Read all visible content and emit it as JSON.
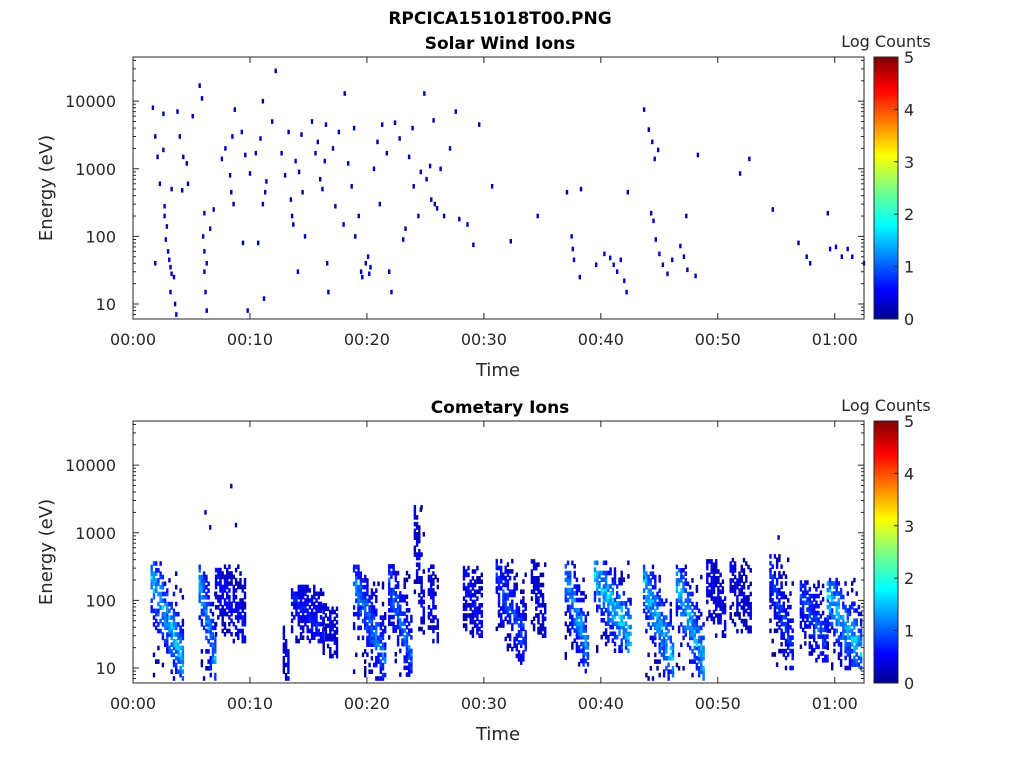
{
  "figure": {
    "title": "RPCICA151018T00.PNG"
  },
  "chart_data": [
    {
      "type": "heatmap",
      "title": "Solar Wind Ions",
      "xlabel": "Time",
      "ylabel": "Energy (eV)",
      "y_scale": "log",
      "ylim": [
        6,
        45000
      ],
      "x_range_minutes": [
        0,
        62.5
      ],
      "x_ticks": [
        "00:00",
        "00:10",
        "00:20",
        "00:30",
        "00:40",
        "00:50",
        "01:00"
      ],
      "y_ticks": [
        "10",
        "100",
        "1000",
        "10000"
      ],
      "colorbar": {
        "label": "Log Counts",
        "range": [
          0,
          5
        ],
        "ticks": [
          "0",
          "1",
          "2",
          "3",
          "4",
          "5"
        ]
      },
      "grid": false,
      "note_points": "x = minutes after 00:00, y = energy in eV, z = log counts",
      "points": [
        [
          1.6,
          8000,
          0.2
        ],
        [
          1.8,
          3000,
          0.2
        ],
        [
          2.0,
          1500,
          0.2
        ],
        [
          2.2,
          600,
          0.2
        ],
        [
          2.5,
          6500,
          0.2
        ],
        [
          2.5,
          1900,
          0.2
        ],
        [
          2.6,
          280,
          0.3
        ],
        [
          2.6,
          200,
          0.3
        ],
        [
          2.8,
          140,
          0.3
        ],
        [
          2.7,
          90,
          0.3
        ],
        [
          2.9,
          60,
          0.3
        ],
        [
          3.0,
          45,
          0.3
        ],
        [
          3.1,
          35,
          0.3
        ],
        [
          3.2,
          28,
          0.3
        ],
        [
          3.4,
          25,
          0.3
        ],
        [
          3.1,
          15,
          0.3
        ],
        [
          3.5,
          10,
          0.3
        ],
        [
          3.6,
          7,
          0.3
        ],
        [
          1.8,
          40,
          0.2
        ],
        [
          3.2,
          500,
          0.2
        ],
        [
          3.7,
          7000,
          0.2
        ],
        [
          3.9,
          3000,
          0.2
        ],
        [
          4.2,
          1500,
          0.2
        ],
        [
          4.5,
          1200,
          0.2
        ],
        [
          4.1,
          480,
          0.2
        ],
        [
          4.6,
          600,
          0.2
        ],
        [
          5.0,
          6000,
          0.2
        ],
        [
          5.6,
          17000,
          0.2
        ],
        [
          5.8,
          11000,
          0.2
        ],
        [
          6.0,
          220,
          0.3
        ],
        [
          5.9,
          100,
          0.3
        ],
        [
          6.0,
          60,
          0.3
        ],
        [
          6.2,
          40,
          0.3
        ],
        [
          6.0,
          30,
          0.3
        ],
        [
          6.1,
          15,
          0.3
        ],
        [
          6.2,
          8,
          0.3
        ],
        [
          6.5,
          130,
          0.2
        ],
        [
          6.8,
          250,
          0.2
        ],
        [
          7.5,
          1400,
          0.2
        ],
        [
          7.8,
          2000,
          0.2
        ],
        [
          8.2,
          800,
          0.2
        ],
        [
          8.4,
          3000,
          0.2
        ],
        [
          8.6,
          7500,
          0.2
        ],
        [
          8.3,
          450,
          0.2
        ],
        [
          8.5,
          300,
          0.2
        ],
        [
          9.2,
          3500,
          0.2
        ],
        [
          9.3,
          80,
          0.2
        ],
        [
          9.5,
          1600,
          0.2
        ],
        [
          9.7,
          8,
          0.2
        ],
        [
          9.9,
          850,
          0.2
        ],
        [
          10.4,
          1700,
          0.2
        ],
        [
          10.6,
          80,
          0.2
        ],
        [
          10.8,
          2800,
          0.2
        ],
        [
          11.0,
          10000,
          0.2
        ],
        [
          11.3,
          650,
          0.2
        ],
        [
          11.2,
          450,
          0.2
        ],
        [
          11.0,
          300,
          0.2
        ],
        [
          11.1,
          12,
          0.2
        ],
        [
          11.8,
          5000,
          0.2
        ],
        [
          12.1,
          28000,
          0.2
        ],
        [
          12.6,
          1700,
          0.2
        ],
        [
          12.9,
          800,
          0.2
        ],
        [
          13.2,
          3500,
          0.2
        ],
        [
          13.4,
          350,
          0.2
        ],
        [
          13.5,
          200,
          0.2
        ],
        [
          13.6,
          150,
          0.2
        ],
        [
          13.8,
          1300,
          0.2
        ],
        [
          14.1,
          900,
          0.2
        ],
        [
          14.3,
          3200,
          0.2
        ],
        [
          14.4,
          450,
          0.2
        ],
        [
          14.6,
          100,
          0.2
        ],
        [
          14.0,
          30,
          0.2
        ],
        [
          15.2,
          5000,
          0.2
        ],
        [
          15.5,
          1700,
          0.2
        ],
        [
          15.7,
          2500,
          0.2
        ],
        [
          15.9,
          700,
          0.2
        ],
        [
          16.1,
          500,
          0.2
        ],
        [
          16.3,
          1300,
          0.2
        ],
        [
          16.4,
          4500,
          0.2
        ],
        [
          16.5,
          40,
          0.2
        ],
        [
          16.6,
          15,
          0.2
        ],
        [
          17.0,
          2000,
          0.2
        ],
        [
          17.2,
          280,
          0.2
        ],
        [
          17.5,
          3500,
          0.2
        ],
        [
          17.9,
          150,
          0.2
        ],
        [
          18.0,
          13000,
          0.2
        ],
        [
          18.3,
          1200,
          0.2
        ],
        [
          18.6,
          550,
          0.2
        ],
        [
          18.8,
          4000,
          0.2
        ],
        [
          18.9,
          100,
          0.2
        ],
        [
          19.2,
          200,
          0.2
        ],
        [
          19.4,
          30,
          0.3
        ],
        [
          19.5,
          25,
          0.3
        ],
        [
          19.8,
          40,
          0.3
        ],
        [
          20.0,
          50,
          0.3
        ],
        [
          20.2,
          35,
          0.3
        ],
        [
          20.1,
          28,
          0.3
        ],
        [
          20.5,
          1000,
          0.2
        ],
        [
          20.8,
          2500,
          0.2
        ],
        [
          21.0,
          300,
          0.2
        ],
        [
          21.2,
          4500,
          0.2
        ],
        [
          21.6,
          1700,
          0.2
        ],
        [
          21.8,
          30,
          0.2
        ],
        [
          22.0,
          15,
          0.2
        ],
        [
          22.3,
          4800,
          0.2
        ],
        [
          22.7,
          2800,
          0.2
        ],
        [
          23.0,
          90,
          0.2
        ],
        [
          23.2,
          130,
          0.2
        ],
        [
          23.5,
          1500,
          0.2
        ],
        [
          23.8,
          4000,
          0.2
        ],
        [
          23.9,
          550,
          0.2
        ],
        [
          24.3,
          200,
          0.2
        ],
        [
          24.5,
          900,
          0.2
        ],
        [
          24.8,
          13000,
          0.2
        ],
        [
          25.0,
          700,
          0.2
        ],
        [
          25.3,
          1100,
          0.2
        ],
        [
          25.6,
          5200,
          0.2
        ],
        [
          25.4,
          350,
          0.2
        ],
        [
          25.7,
          300,
          0.2
        ],
        [
          25.9,
          260,
          0.2
        ],
        [
          26.2,
          1000,
          0.2
        ],
        [
          26.5,
          200,
          0.2
        ],
        [
          27.0,
          2000,
          0.2
        ],
        [
          27.5,
          7000,
          0.2
        ],
        [
          27.8,
          180,
          0.2
        ],
        [
          28.5,
          150,
          0.2
        ],
        [
          29.0,
          75,
          0.2
        ],
        [
          29.5,
          4500,
          0.2
        ],
        [
          30.6,
          550,
          0.2
        ],
        [
          32.2,
          85,
          0.2
        ],
        [
          34.5,
          200,
          0.2
        ],
        [
          37.0,
          450,
          0.2
        ],
        [
          37.4,
          100,
          0.3
        ],
        [
          37.5,
          65,
          0.3
        ],
        [
          37.6,
          45,
          0.3
        ],
        [
          38.1,
          25,
          0.3
        ],
        [
          38.2,
          500,
          0.2
        ],
        [
          39.5,
          38,
          0.3
        ],
        [
          40.2,
          55,
          0.3
        ],
        [
          40.7,
          48,
          0.3
        ],
        [
          41.0,
          38,
          0.3
        ],
        [
          41.3,
          30,
          0.3
        ],
        [
          41.6,
          45,
          0.3
        ],
        [
          41.9,
          22,
          0.3
        ],
        [
          42.1,
          15,
          0.3
        ],
        [
          42.2,
          450,
          0.2
        ],
        [
          43.6,
          7500,
          0.2
        ],
        [
          44.0,
          3800,
          0.2
        ],
        [
          44.3,
          2500,
          0.2
        ],
        [
          44.5,
          1400,
          0.2
        ],
        [
          44.8,
          1900,
          0.2
        ],
        [
          44.2,
          220,
          0.3
        ],
        [
          44.4,
          170,
          0.3
        ],
        [
          44.6,
          90,
          0.3
        ],
        [
          44.9,
          55,
          0.3
        ],
        [
          45.2,
          38,
          0.3
        ],
        [
          45.6,
          28,
          0.3
        ],
        [
          46.0,
          45,
          0.3
        ],
        [
          46.7,
          72,
          0.3
        ],
        [
          47.0,
          50,
          0.3
        ],
        [
          47.3,
          32,
          0.3
        ],
        [
          47.2,
          200,
          0.2
        ],
        [
          48.0,
          26,
          0.3
        ],
        [
          48.2,
          1600,
          0.2
        ],
        [
          51.8,
          850,
          0.2
        ],
        [
          52.6,
          1400,
          0.2
        ],
        [
          54.6,
          250,
          0.2
        ],
        [
          56.8,
          80,
          0.2
        ],
        [
          57.5,
          50,
          0.2
        ],
        [
          57.8,
          40,
          0.2
        ],
        [
          59.3,
          220,
          0.2
        ],
        [
          59.5,
          65,
          0.3
        ],
        [
          60.0,
          70,
          0.3
        ],
        [
          60.5,
          50,
          0.3
        ],
        [
          61.0,
          65,
          0.3
        ],
        [
          61.4,
          50,
          0.3
        ],
        [
          62.4,
          40,
          0.2
        ]
      ]
    },
    {
      "type": "heatmap",
      "title": "Cometary Ions",
      "xlabel": "Time",
      "ylabel": "Energy (eV)",
      "y_scale": "log",
      "ylim": [
        6,
        45000
      ],
      "x_range_minutes": [
        0,
        62.5
      ],
      "x_ticks": [
        "00:00",
        "00:10",
        "00:20",
        "00:30",
        "00:40",
        "00:50",
        "01:00"
      ],
      "y_ticks": [
        "10",
        "100",
        "1000",
        "10000"
      ],
      "colorbar": {
        "label": "Log Counts",
        "range": [
          0,
          5
        ],
        "ticks": [
          "0",
          "1",
          "2",
          "3",
          "4",
          "5"
        ]
      },
      "grid": false,
      "note_bursts": "each burst: [x start min, x end min, y high eV, y low eV, core log counts, seed]",
      "bursts": [
        [
          1.5,
          4.2,
          380,
          7,
          1.8,
          11
        ],
        [
          5.6,
          7.0,
          320,
          7,
          1.7,
          23
        ],
        [
          7.0,
          9.6,
          350,
          25,
          0.7,
          31
        ],
        [
          12.8,
          13.2,
          40,
          7,
          0.5,
          37
        ],
        [
          13.5,
          16.2,
          160,
          25,
          0.8,
          41
        ],
        [
          16.2,
          17.5,
          90,
          15,
          0.5,
          43
        ],
        [
          18.8,
          21.5,
          350,
          7,
          1.4,
          47
        ],
        [
          21.8,
          23.8,
          320,
          8,
          1.3,
          53
        ],
        [
          24.0,
          24.8,
          2500,
          30,
          0.6,
          59
        ],
        [
          25.2,
          26.0,
          320,
          25,
          0.6,
          61
        ],
        [
          28.2,
          29.8,
          300,
          30,
          0.7,
          67
        ],
        [
          31.0,
          33.6,
          400,
          12,
          1.1,
          71
        ],
        [
          34.0,
          35.2,
          380,
          30,
          0.5,
          73
        ],
        [
          36.9,
          38.9,
          380,
          9,
          1.6,
          79
        ],
        [
          39.4,
          42.5,
          380,
          18,
          1.9,
          83
        ],
        [
          43.6,
          46.2,
          320,
          7,
          1.8,
          89
        ],
        [
          46.4,
          48.7,
          320,
          7,
          1.8,
          97
        ],
        [
          49.0,
          50.7,
          380,
          30,
          0.6,
          101
        ],
        [
          51.0,
          52.8,
          400,
          35,
          0.5,
          103
        ],
        [
          54.4,
          56.3,
          450,
          10,
          1.0,
          107
        ],
        [
          57.0,
          59.3,
          200,
          13,
          1.1,
          109
        ],
        [
          59.3,
          62.3,
          200,
          10,
          1.8,
          113
        ]
      ],
      "points": [
        [
          6.1,
          2000,
          0.2
        ],
        [
          6.5,
          1200,
          0.2
        ],
        [
          8.3,
          4900,
          0.2
        ],
        [
          8.7,
          1300,
          0.2
        ],
        [
          24.5,
          2200,
          0.2
        ],
        [
          55.1,
          850,
          0.2
        ]
      ]
    }
  ]
}
